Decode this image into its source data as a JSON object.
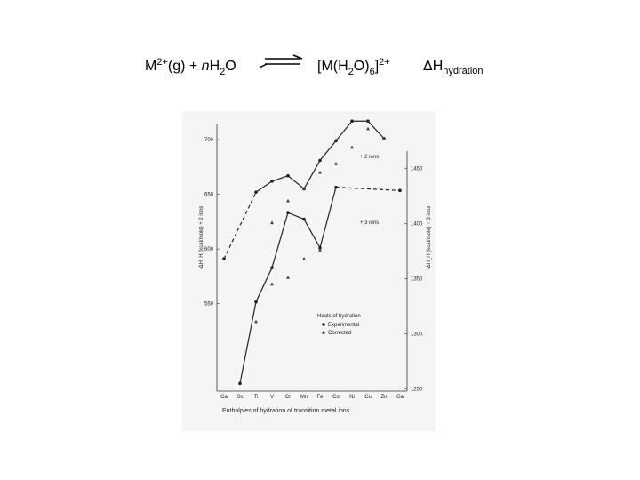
{
  "equation": {
    "reactant": [
      "M",
      "2+",
      "(g) + ",
      "n",
      "H",
      "2",
      "O"
    ],
    "product": [
      "[M(H",
      "2",
      "O)",
      "6",
      "]",
      "2+"
    ],
    "enthalpy": [
      "ΔH",
      "hydration"
    ]
  },
  "chart_data": {
    "type": "line",
    "x_label": "Enthalpies of hydration of transition metal ions.",
    "y_label": "-ΔH_H (kcal/mole) + 2 ions",
    "y2_label": "-ΔH_H (kcal/mole) + 3 ions",
    "categories": [
      "Ca",
      "Sc",
      "Ti",
      "V",
      "Cr",
      "Mn",
      "Fe",
      "Co",
      "Ni",
      "Cu",
      "Zn",
      "Ga"
    ],
    "ylim": [
      470,
      718
    ],
    "yticks": [
      550,
      600,
      650,
      700
    ],
    "y2lim": [
      1248,
      1494
    ],
    "y2ticks": [
      1250,
      1300,
      1350,
      1400,
      1450
    ],
    "gap_style": "dashed",
    "series": [
      {
        "label": "+ 2 ions",
        "marker": "circle",
        "line": true,
        "color": "#222222",
        "values": [
          591,
          null,
          652,
          662,
          667,
          655,
          681,
          699,
          717,
          717,
          701,
          null
        ]
      },
      {
        "marker": "triangle",
        "line": false,
        "color": "#444444",
        "values": [
          null,
          null,
          null,
          624,
          644,
          655,
          670,
          678,
          693,
          710,
          701,
          null
        ]
      },
      {
        "label": "+ 3 ions",
        "axis": "y2",
        "marker": "circle",
        "line": true,
        "color": "#222222",
        "values": [
          null,
          1255,
          1329,
          1360,
          1410,
          1404,
          1378,
          1433,
          null,
          null,
          null,
          1430
        ]
      },
      {
        "axis": "y2",
        "marker": "triangle",
        "line": false,
        "color": "#444444",
        "values": [
          null,
          null,
          1311,
          1345,
          1351,
          1368,
          1376,
          null,
          null,
          null,
          null,
          null
        ]
      }
    ],
    "legend": {
      "title": "Heats of hydration",
      "entries": [
        {
          "label": "Experimental",
          "marker": "circle"
        },
        {
          "label": "Corrected",
          "marker": "triangle"
        }
      ]
    }
  }
}
